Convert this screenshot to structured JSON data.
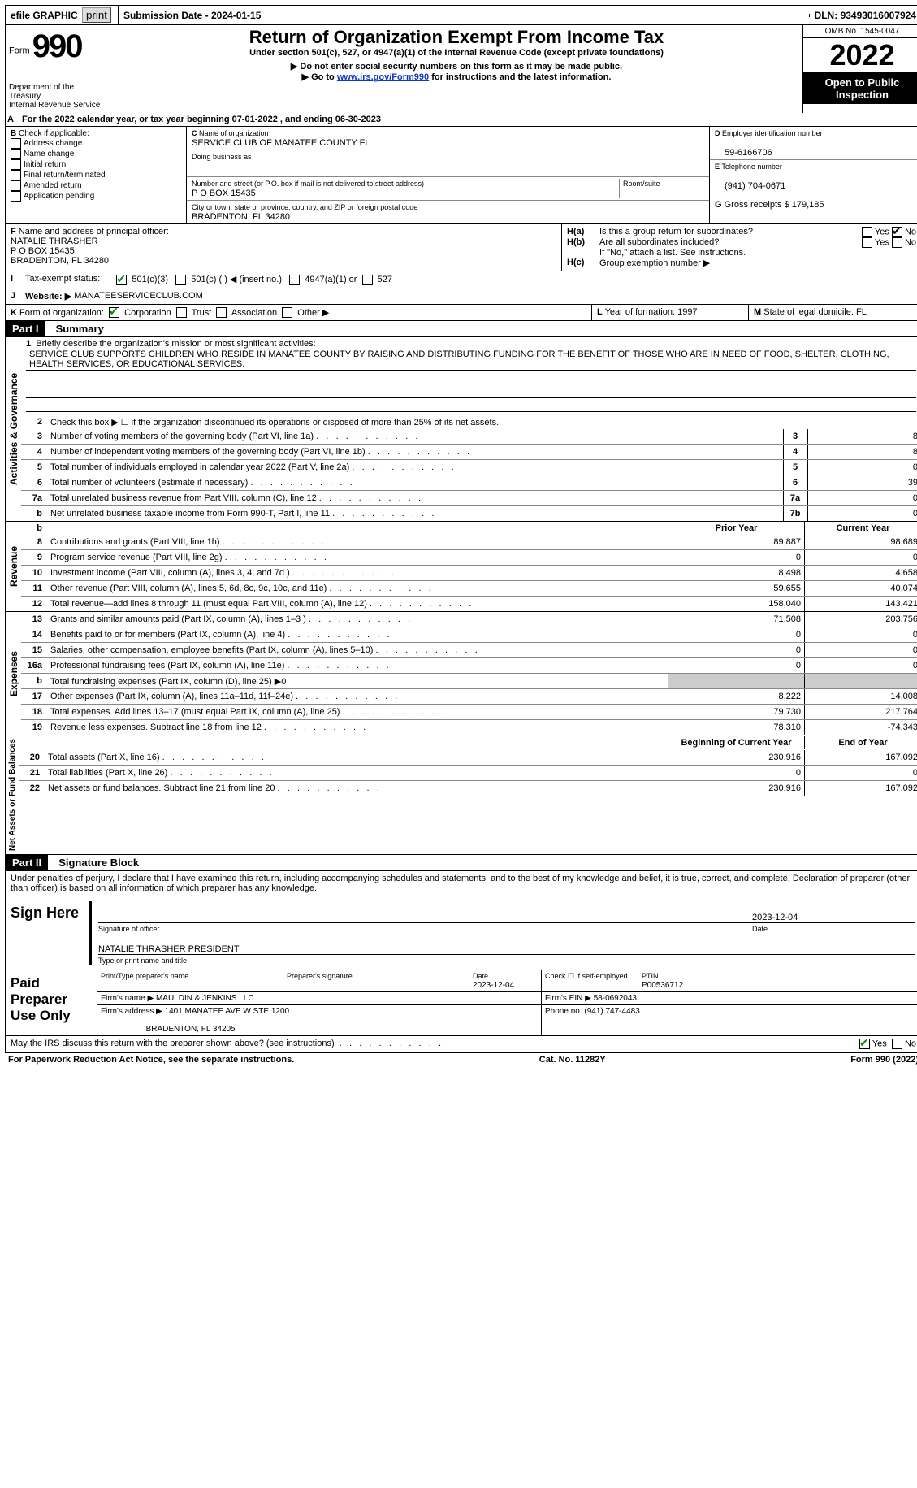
{
  "topbar": {
    "efile": "efile GRAPHIC",
    "print": "print",
    "submission_label": "Submission Date - ",
    "submission_date": "2024-01-15",
    "dln_label": "DLN: ",
    "dln": "93493016007924"
  },
  "header": {
    "form_word": "Form",
    "form_no": "990",
    "dept": "Department of the Treasury",
    "irs": "Internal Revenue Service",
    "title": "Return of Organization Exempt From Income Tax",
    "subtitle": "Under section 501(c), 527, or 4947(a)(1) of the Internal Revenue Code (except private foundations)",
    "warn1": "Do not enter social security numbers on this form as it may be made public.",
    "warn2_pre": "Go to ",
    "warn2_link": "www.irs.gov/Form990",
    "warn2_post": " for instructions and the latest information.",
    "omb_label": "OMB No. ",
    "omb": "1545-0047",
    "year": "2022",
    "open": "Open to Public Inspection"
  },
  "a_line": "For the 2022 calendar year, or tax year beginning 07-01-2022    , and ending 06-30-2023",
  "b": {
    "label": "Check if applicable:",
    "opts": [
      "Address change",
      "Name change",
      "Initial return",
      "Final return/terminated",
      "Amended return",
      "Application pending"
    ]
  },
  "c": {
    "name_label": "Name of organization",
    "name": "SERVICE CLUB OF MANATEE COUNTY FL",
    "dba_label": "Doing business as",
    "addr_label": "Number and street (or P.O. box if mail is not delivered to street address)",
    "room_label": "Room/suite",
    "addr": "P O BOX 15435",
    "city_label": "City or town, state or province, country, and ZIP or foreign postal code",
    "city": "BRADENTON, FL  34280"
  },
  "d": {
    "label": "Employer identification number",
    "value": "59-6166706"
  },
  "e": {
    "label": "Telephone number",
    "value": "(941) 704-0671"
  },
  "g": {
    "label": "Gross receipts $ ",
    "value": "179,185"
  },
  "f": {
    "label": "Name and address of principal officer:",
    "name": "NATALIE THRASHER",
    "addr1": "P O BOX 15435",
    "addr2": "BRADENTON, FL  34280"
  },
  "h": {
    "a": "Is this a group return for subordinates?",
    "b": "Are all subordinates included?",
    "b_note": "If \"No,\" attach a list. See instructions.",
    "c": "Group exemption number ▶"
  },
  "i": {
    "label": "Tax-exempt status:",
    "opt1": "501(c)(3)",
    "opt2": "501(c) (   ) ◀ (insert no.)",
    "opt3": "4947(a)(1) or",
    "opt4": "527"
  },
  "j": {
    "label": "Website: ▶",
    "value": "MANATEESERVICECLUB.COM"
  },
  "k": {
    "label": "Form of organization:",
    "opts": [
      "Corporation",
      "Trust",
      "Association",
      "Other ▶"
    ]
  },
  "l": {
    "label": "Year of formation: ",
    "value": "1997"
  },
  "m": {
    "label": "State of legal domicile: ",
    "value": "FL"
  },
  "part1": {
    "title": "Part I",
    "subtitle": "Summary",
    "side_activities": "Activities & Governance",
    "side_revenue": "Revenue",
    "side_expenses": "Expenses",
    "side_netassets": "Net Assets or Fund Balances",
    "l1_label": "Briefly describe the organization's mission or most significant activities:",
    "l1_text": "SERVICE CLUB SUPPORTS CHILDREN WHO RESIDE IN MANATEE COUNTY BY RAISING AND DISTRIBUTING FUNDING FOR THE BENEFIT OF THOSE WHO ARE IN NEED OF FOOD, SHELTER, CLOTHING, HEALTH SERVICES, OR EDUCATIONAL SERVICES.",
    "l2": "Check this box ▶ ☐  if the organization discontinued its operations or disposed of more than 25% of its net assets.",
    "rows_gov": [
      {
        "n": "3",
        "t": "Number of voting members of the governing body (Part VI, line 1a)",
        "box": "3",
        "v": "8"
      },
      {
        "n": "4",
        "t": "Number of independent voting members of the governing body (Part VI, line 1b)",
        "box": "4",
        "v": "8"
      },
      {
        "n": "5",
        "t": "Total number of individuals employed in calendar year 2022 (Part V, line 2a)",
        "box": "5",
        "v": "0"
      },
      {
        "n": "6",
        "t": "Total number of volunteers (estimate if necessary)",
        "box": "6",
        "v": "39"
      },
      {
        "n": "7a",
        "t": "Total unrelated business revenue from Part VIII, column (C), line 12",
        "box": "7a",
        "v": "0"
      },
      {
        "n": "b",
        "t": "Net unrelated business taxable income from Form 990-T, Part I, line 11",
        "box": "7b",
        "v": "0"
      }
    ],
    "prior_label": "Prior Year",
    "current_label": "Current Year",
    "rows_rev": [
      {
        "n": "8",
        "t": "Contributions and grants (Part VIII, line 1h)",
        "p": "89,887",
        "c": "98,689"
      },
      {
        "n": "9",
        "t": "Program service revenue (Part VIII, line 2g)",
        "p": "0",
        "c": "0"
      },
      {
        "n": "10",
        "t": "Investment income (Part VIII, column (A), lines 3, 4, and 7d )",
        "p": "8,498",
        "c": "4,658"
      },
      {
        "n": "11",
        "t": "Other revenue (Part VIII, column (A), lines 5, 6d, 8c, 9c, 10c, and 11e)",
        "p": "59,655",
        "c": "40,074"
      },
      {
        "n": "12",
        "t": "Total revenue—add lines 8 through 11 (must equal Part VIII, column (A), line 12)",
        "p": "158,040",
        "c": "143,421"
      }
    ],
    "rows_exp": [
      {
        "n": "13",
        "t": "Grants and similar amounts paid (Part IX, column (A), lines 1–3 )",
        "p": "71,508",
        "c": "203,756"
      },
      {
        "n": "14",
        "t": "Benefits paid to or for members (Part IX, column (A), line 4)",
        "p": "0",
        "c": "0"
      },
      {
        "n": "15",
        "t": "Salaries, other compensation, employee benefits (Part IX, column (A), lines 5–10)",
        "p": "0",
        "c": "0"
      },
      {
        "n": "16a",
        "t": "Professional fundraising fees (Part IX, column (A), line 11e)",
        "p": "0",
        "c": "0"
      },
      {
        "n": "b",
        "t": "Total fundraising expenses (Part IX, column (D), line 25) ▶0",
        "grey": true
      },
      {
        "n": "17",
        "t": "Other expenses (Part IX, column (A), lines 11a–11d, 11f–24e)",
        "p": "8,222",
        "c": "14,008"
      },
      {
        "n": "18",
        "t": "Total expenses. Add lines 13–17 (must equal Part IX, column (A), line 25)",
        "p": "79,730",
        "c": "217,764"
      },
      {
        "n": "19",
        "t": "Revenue less expenses. Subtract line 18 from line 12",
        "p": "78,310",
        "c": "-74,343"
      }
    ],
    "beg_label": "Beginning of Current Year",
    "end_label": "End of Year",
    "rows_net": [
      {
        "n": "20",
        "t": "Total assets (Part X, line 16)",
        "p": "230,916",
        "c": "167,092"
      },
      {
        "n": "21",
        "t": "Total liabilities (Part X, line 26)",
        "p": "0",
        "c": "0"
      },
      {
        "n": "22",
        "t": "Net assets or fund balances. Subtract line 21 from line 20",
        "p": "230,916",
        "c": "167,092"
      }
    ]
  },
  "part2": {
    "title": "Part II",
    "subtitle": "Signature Block",
    "penalty": "Under penalties of perjury, I declare that I have examined this return, including accompanying schedules and statements, and to the best of my knowledge and belief, it is true, correct, and complete. Declaration of preparer (other than officer) is based on all information of which preparer has any knowledge.",
    "sign_here": "Sign Here",
    "sig_officer": "Signature of officer",
    "date_label": "Date",
    "sig_date": "2023-12-04",
    "officer_name": "NATALIE THRASHER  PRESIDENT",
    "type_name": "Type or print name and title",
    "paid": "Paid Preparer Use Only",
    "prep_name_label": "Print/Type preparer's name",
    "prep_sig_label": "Preparer's signature",
    "prep_date_label": "Date",
    "prep_date": "2023-12-04",
    "check_self": "Check ☐ if self-employed",
    "ptin_label": "PTIN",
    "ptin": "P00536712",
    "firm_name_label": "Firm's name    ▶ ",
    "firm_name": "MAULDIN & JENKINS LLC",
    "firm_ein_label": "Firm's EIN ▶ ",
    "firm_ein": "58-0692043",
    "firm_addr_label": "Firm's address ▶ ",
    "firm_addr1": "1401 MANATEE AVE W STE 1200",
    "firm_addr2": "BRADENTON, FL  34205",
    "phone_label": "Phone no. ",
    "phone": "(941) 747-4483",
    "may_irs": "May the IRS discuss this return with the preparer shown above? (see instructions)",
    "yes": "Yes",
    "no": "No"
  },
  "footer": {
    "pra": "For Paperwork Reduction Act Notice, see the separate instructions.",
    "cat": "Cat. No. 11282Y",
    "form": "Form 990 (2022)"
  }
}
